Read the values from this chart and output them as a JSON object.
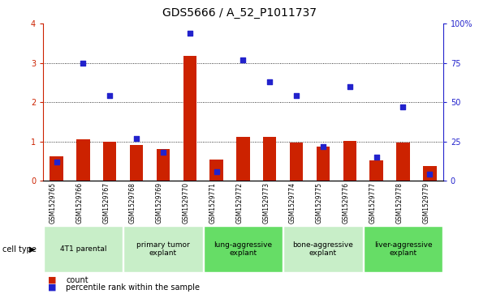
{
  "title": "GDS5666 / A_52_P1011737",
  "samples": [
    "GSM1529765",
    "GSM1529766",
    "GSM1529767",
    "GSM1529768",
    "GSM1529769",
    "GSM1529770",
    "GSM1529771",
    "GSM1529772",
    "GSM1529773",
    "GSM1529774",
    "GSM1529775",
    "GSM1529776",
    "GSM1529777",
    "GSM1529778",
    "GSM1529779"
  ],
  "bar_values": [
    0.62,
    1.05,
    1.0,
    0.92,
    0.8,
    3.18,
    0.55,
    1.12,
    1.12,
    0.98,
    0.88,
    1.02,
    0.52,
    0.98,
    0.38
  ],
  "scatter_values_pct": [
    12,
    75,
    54,
    27,
    18,
    94,
    6,
    77,
    63,
    54,
    22,
    60,
    15,
    47,
    4
  ],
  "ylim_left": [
    0,
    4
  ],
  "ylim_right": [
    0,
    100
  ],
  "yticks_left": [
    0,
    1,
    2,
    3,
    4
  ],
  "yticks_right": [
    0,
    25,
    50,
    75,
    100
  ],
  "bar_color": "#cc2200",
  "scatter_color": "#2222cc",
  "ytick_right_labels": [
    "0",
    "25",
    "50",
    "75",
    "100%"
  ],
  "cell_type_groups": [
    {
      "label": "4T1 parental",
      "indices": [
        0,
        1,
        2
      ],
      "color": "#c8eec8"
    },
    {
      "label": "primary tumor\nexplant",
      "indices": [
        3,
        4,
        5
      ],
      "color": "#c8eec8"
    },
    {
      "label": "lung-aggressive\nexplant",
      "indices": [
        6,
        7,
        8
      ],
      "color": "#66dd66"
    },
    {
      "label": "bone-aggressive\nexplant",
      "indices": [
        9,
        10,
        11
      ],
      "color": "#c8eec8"
    },
    {
      "label": "liver-aggressive\nexplant",
      "indices": [
        12,
        13,
        14
      ],
      "color": "#66dd66"
    }
  ],
  "cell_type_label": "cell type",
  "legend_count_label": "count",
  "legend_percentile_label": "percentile rank within the sample",
  "title_fontsize": 10,
  "tick_fontsize": 7,
  "sample_fontsize": 5.5,
  "group_fontsize": 6.5,
  "legend_fontsize": 7,
  "bar_width": 0.5,
  "bg_grey": "#d3d3d3",
  "bg_white": "#ffffff"
}
